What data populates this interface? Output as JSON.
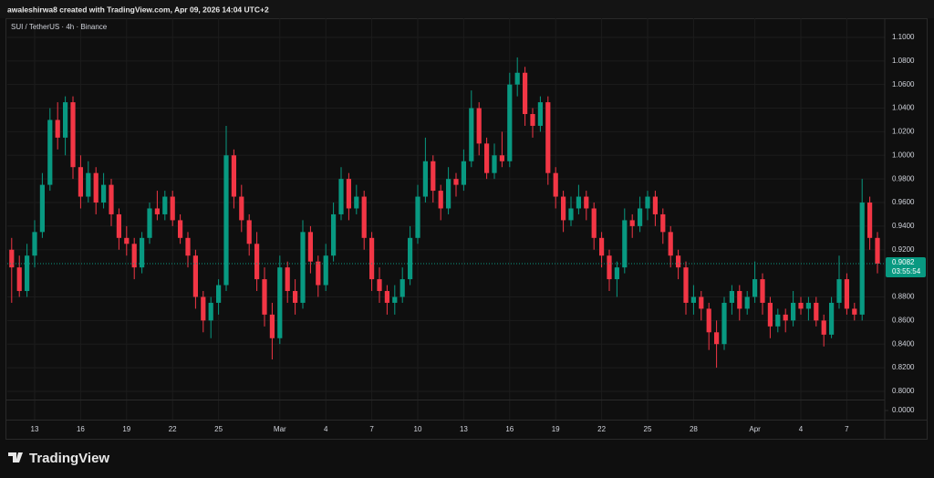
{
  "header": {
    "title": "awaleshirwa8 created with TradingView.com, Apr 09, 2026 14:04 UTC+2"
  },
  "chart_data": {
    "type": "candlestick",
    "title": "SUI / TetherUS · 4h · Binance",
    "up_color": "#089981",
    "down_color": "#f23645",
    "grid": true,
    "ylim": [
      0.793,
      1.1162
    ],
    "yticks": [
      {
        "value": 1.1,
        "label": "1.1000"
      },
      {
        "value": 1.08,
        "label": "1.0800"
      },
      {
        "value": 1.06,
        "label": "1.0600"
      },
      {
        "value": 1.04,
        "label": "1.0400"
      },
      {
        "value": 1.02,
        "label": "1.0200"
      },
      {
        "value": 1.0,
        "label": "1.0000"
      },
      {
        "value": 0.98,
        "label": "0.9800"
      },
      {
        "value": 0.96,
        "label": "0.9600"
      },
      {
        "value": 0.94,
        "label": "0.9400"
      },
      {
        "value": 0.92,
        "label": "0.9200"
      },
      {
        "value": 0.88,
        "label": "0.8800"
      },
      {
        "value": 0.86,
        "label": "0.8600"
      },
      {
        "value": 0.84,
        "label": "0.8400"
      },
      {
        "value": 0.82,
        "label": "0.8200"
      },
      {
        "value": 0.8,
        "label": "0.8000"
      }
    ],
    "lower_pane_yticks": [
      {
        "value": 0,
        "label": "0.0000"
      }
    ],
    "last_price": 0.9082,
    "countdown": "03:55:54",
    "categories": [
      null,
      null,
      null,
      "13",
      null,
      null,
      null,
      null,
      null,
      "16",
      null,
      null,
      null,
      null,
      null,
      "19",
      null,
      null,
      null,
      null,
      null,
      "22",
      null,
      null,
      null,
      null,
      null,
      "25",
      null,
      null,
      null,
      null,
      null,
      null,
      null,
      "Mar",
      null,
      null,
      null,
      null,
      null,
      "4",
      null,
      null,
      null,
      null,
      null,
      "7",
      null,
      null,
      null,
      null,
      null,
      "10",
      null,
      null,
      null,
      null,
      null,
      "13",
      null,
      null,
      null,
      null,
      null,
      "16",
      null,
      null,
      null,
      null,
      null,
      "19",
      null,
      null,
      null,
      null,
      null,
      "22",
      null,
      null,
      null,
      null,
      null,
      "25",
      null,
      null,
      null,
      null,
      null,
      "28",
      null,
      null,
      null,
      null,
      null,
      null,
      null,
      "Apr",
      null,
      null,
      null,
      null,
      null,
      "4",
      null,
      null,
      null,
      null,
      null,
      "7",
      null,
      null,
      null,
      null
    ],
    "ohlc": [
      [
        0.92,
        0.93,
        0.875,
        0.905
      ],
      [
        0.905,
        0.915,
        0.88,
        0.885
      ],
      [
        0.885,
        0.925,
        0.88,
        0.915
      ],
      [
        0.915,
        0.945,
        0.905,
        0.935
      ],
      [
        0.935,
        0.985,
        0.93,
        0.975
      ],
      [
        0.975,
        1.04,
        0.97,
        1.03
      ],
      [
        1.03,
        1.045,
        1.005,
        1.015
      ],
      [
        1.015,
        1.05,
        1.0,
        1.045
      ],
      [
        1.045,
        1.05,
        0.98,
        0.99
      ],
      [
        0.99,
        1.0,
        0.955,
        0.965
      ],
      [
        0.965,
        0.995,
        0.96,
        0.985
      ],
      [
        0.985,
        0.99,
        0.95,
        0.96
      ],
      [
        0.96,
        0.985,
        0.955,
        0.975
      ],
      [
        0.975,
        0.98,
        0.94,
        0.95
      ],
      [
        0.95,
        0.955,
        0.92,
        0.93
      ],
      [
        0.93,
        0.94,
        0.915,
        0.925
      ],
      [
        0.925,
        0.93,
        0.895,
        0.905
      ],
      [
        0.905,
        0.935,
        0.9,
        0.93
      ],
      [
        0.93,
        0.96,
        0.925,
        0.955
      ],
      [
        0.955,
        0.97,
        0.945,
        0.95
      ],
      [
        0.95,
        0.97,
        0.945,
        0.965
      ],
      [
        0.965,
        0.97,
        0.94,
        0.945
      ],
      [
        0.945,
        0.95,
        0.925,
        0.93
      ],
      [
        0.93,
        0.935,
        0.905,
        0.915
      ],
      [
        0.915,
        0.92,
        0.87,
        0.88
      ],
      [
        0.88,
        0.885,
        0.85,
        0.86
      ],
      [
        0.86,
        0.88,
        0.845,
        0.875
      ],
      [
        0.875,
        0.895,
        0.865,
        0.89
      ],
      [
        0.89,
        1.025,
        0.885,
        1.0
      ],
      [
        1.0,
        1.005,
        0.955,
        0.965
      ],
      [
        0.965,
        0.975,
        0.935,
        0.945
      ],
      [
        0.945,
        0.95,
        0.915,
        0.925
      ],
      [
        0.925,
        0.935,
        0.885,
        0.895
      ],
      [
        0.895,
        0.905,
        0.855,
        0.865
      ],
      [
        0.865,
        0.875,
        0.827,
        0.845
      ],
      [
        0.845,
        0.915,
        0.84,
        0.905
      ],
      [
        0.905,
        0.91,
        0.875,
        0.885
      ],
      [
        0.885,
        0.895,
        0.865,
        0.875
      ],
      [
        0.875,
        0.945,
        0.87,
        0.935
      ],
      [
        0.935,
        0.94,
        0.9,
        0.91
      ],
      [
        0.91,
        0.915,
        0.88,
        0.89
      ],
      [
        0.89,
        0.925,
        0.885,
        0.915
      ],
      [
        0.915,
        0.96,
        0.91,
        0.95
      ],
      [
        0.95,
        0.99,
        0.945,
        0.98
      ],
      [
        0.98,
        0.985,
        0.945,
        0.955
      ],
      [
        0.955,
        0.975,
        0.95,
        0.965
      ],
      [
        0.965,
        0.97,
        0.92,
        0.93
      ],
      [
        0.93,
        0.935,
        0.885,
        0.895
      ],
      [
        0.895,
        0.905,
        0.875,
        0.885
      ],
      [
        0.885,
        0.89,
        0.865,
        0.875
      ],
      [
        0.875,
        0.89,
        0.865,
        0.88
      ],
      [
        0.88,
        0.905,
        0.875,
        0.895
      ],
      [
        0.895,
        0.94,
        0.89,
        0.93
      ],
      [
        0.93,
        0.975,
        0.925,
        0.965
      ],
      [
        0.965,
        1.015,
        0.96,
        0.995
      ],
      [
        0.995,
        1.0,
        0.96,
        0.97
      ],
      [
        0.97,
        0.975,
        0.945,
        0.955
      ],
      [
        0.955,
        0.99,
        0.95,
        0.98
      ],
      [
        0.98,
        0.985,
        0.965,
        0.975
      ],
      [
        0.975,
        1.005,
        0.97,
        0.995
      ],
      [
        0.995,
        1.055,
        0.99,
        1.04
      ],
      [
        1.04,
        1.045,
        1.0,
        1.01
      ],
      [
        1.01,
        1.015,
        0.98,
        0.985
      ],
      [
        0.985,
        1.01,
        0.98,
        1.0
      ],
      [
        1.0,
        1.02,
        0.99,
        0.995
      ],
      [
        0.995,
        1.07,
        0.99,
        1.06
      ],
      [
        1.06,
        1.083,
        1.05,
        1.07
      ],
      [
        1.07,
        1.075,
        1.025,
        1.035
      ],
      [
        1.035,
        1.04,
        1.015,
        1.025
      ],
      [
        1.025,
        1.05,
        1.02,
        1.045
      ],
      [
        1.045,
        1.05,
        0.975,
        0.985
      ],
      [
        0.985,
        0.99,
        0.955,
        0.965
      ],
      [
        0.965,
        0.97,
        0.935,
        0.945
      ],
      [
        0.945,
        0.965,
        0.94,
        0.955
      ],
      [
        0.955,
        0.975,
        0.95,
        0.965
      ],
      [
        0.965,
        0.97,
        0.945,
        0.955
      ],
      [
        0.955,
        0.96,
        0.92,
        0.93
      ],
      [
        0.93,
        0.935,
        0.905,
        0.915
      ],
      [
        0.915,
        0.92,
        0.885,
        0.895
      ],
      [
        0.895,
        0.91,
        0.88,
        0.905
      ],
      [
        0.905,
        0.955,
        0.9,
        0.945
      ],
      [
        0.945,
        0.95,
        0.93,
        0.94
      ],
      [
        0.94,
        0.965,
        0.935,
        0.955
      ],
      [
        0.955,
        0.97,
        0.945,
        0.965
      ],
      [
        0.965,
        0.97,
        0.94,
        0.95
      ],
      [
        0.95,
        0.955,
        0.925,
        0.935
      ],
      [
        0.935,
        0.94,
        0.905,
        0.915
      ],
      [
        0.915,
        0.92,
        0.895,
        0.905
      ],
      [
        0.905,
        0.91,
        0.865,
        0.875
      ],
      [
        0.875,
        0.89,
        0.865,
        0.88
      ],
      [
        0.88,
        0.885,
        0.86,
        0.87
      ],
      [
        0.87,
        0.875,
        0.835,
        0.85
      ],
      [
        0.85,
        0.86,
        0.82,
        0.84
      ],
      [
        0.84,
        0.88,
        0.835,
        0.875
      ],
      [
        0.875,
        0.89,
        0.865,
        0.885
      ],
      [
        0.885,
        0.89,
        0.86,
        0.87
      ],
      [
        0.87,
        0.885,
        0.865,
        0.88
      ],
      [
        0.88,
        0.91,
        0.875,
        0.895
      ],
      [
        0.895,
        0.9,
        0.865,
        0.875
      ],
      [
        0.875,
        0.88,
        0.845,
        0.855
      ],
      [
        0.855,
        0.87,
        0.85,
        0.865
      ],
      [
        0.865,
        0.87,
        0.85,
        0.86
      ],
      [
        0.86,
        0.885,
        0.855,
        0.875
      ],
      [
        0.875,
        0.88,
        0.865,
        0.87
      ],
      [
        0.87,
        0.88,
        0.86,
        0.875
      ],
      [
        0.875,
        0.88,
        0.855,
        0.86
      ],
      [
        0.86,
        0.865,
        0.838,
        0.848
      ],
      [
        0.848,
        0.88,
        0.845,
        0.875
      ],
      [
        0.875,
        0.915,
        0.87,
        0.895
      ],
      [
        0.895,
        0.9,
        0.865,
        0.87
      ],
      [
        0.87,
        0.875,
        0.86,
        0.865
      ],
      [
        0.865,
        0.98,
        0.86,
        0.96
      ],
      [
        0.96,
        0.965,
        0.92,
        0.93
      ],
      [
        0.93,
        0.935,
        0.9,
        0.9082
      ]
    ]
  },
  "footer": {
    "logo": "TradingView"
  }
}
